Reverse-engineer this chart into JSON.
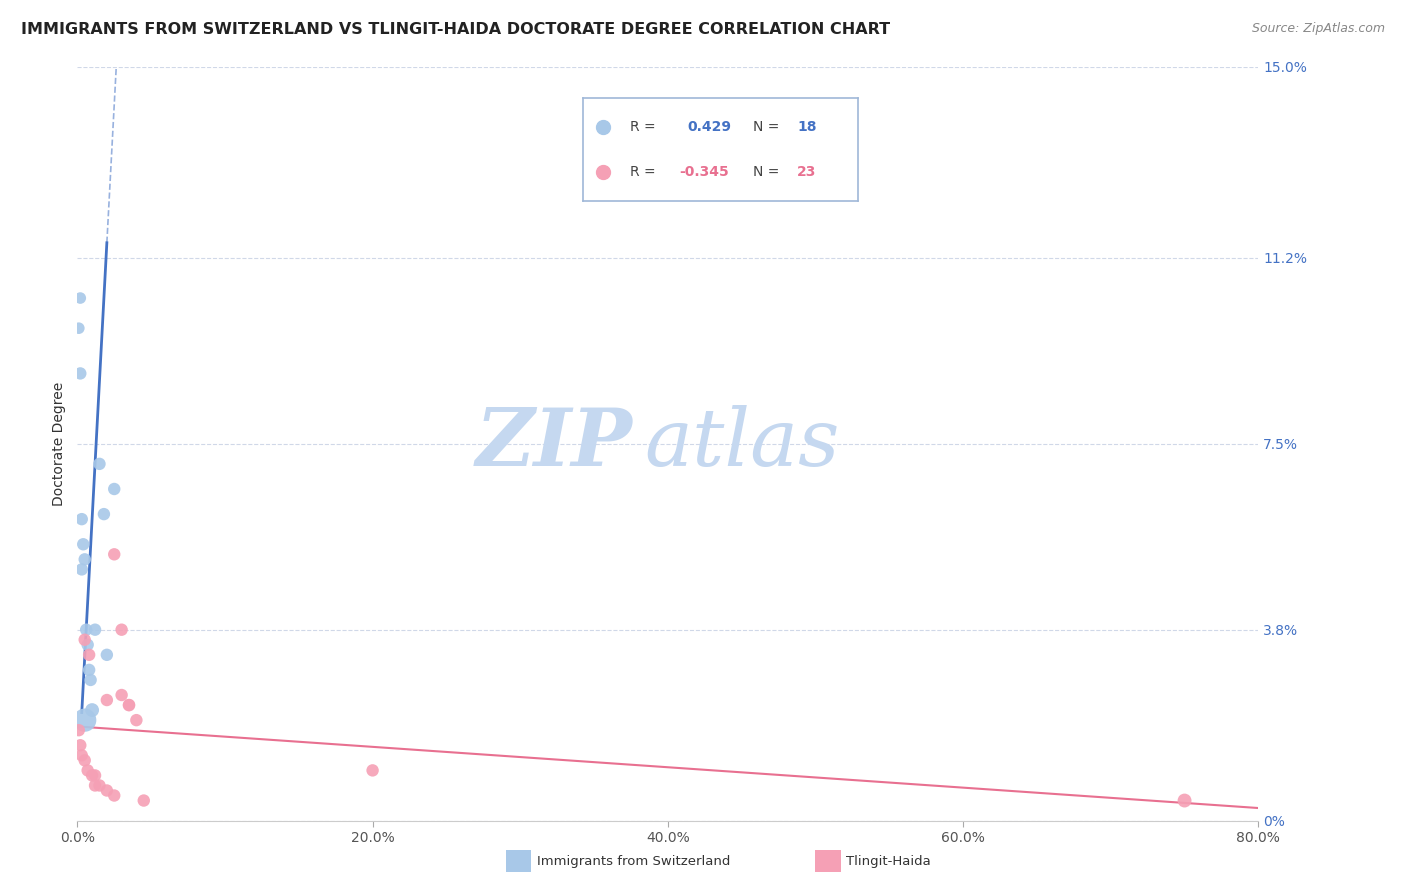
{
  "title": "IMMIGRANTS FROM SWITZERLAND VS TLINGIT-HAIDA DOCTORATE DEGREE CORRELATION CHART",
  "source": "Source: ZipAtlas.com",
  "ylabel": "Doctorate Degree",
  "xlim": [
    0.0,
    0.8
  ],
  "ylim": [
    0.0,
    0.15
  ],
  "yticks": [
    0.0,
    0.038,
    0.075,
    0.112,
    0.15
  ],
  "ytick_labels": [
    "0%",
    "3.8%",
    "7.5%",
    "11.2%",
    "15.0%"
  ],
  "xtick_labels": [
    "0.0%",
    "20.0%",
    "40.0%",
    "60.0%",
    "80.0%"
  ],
  "xticks": [
    0.0,
    0.2,
    0.4,
    0.6,
    0.8
  ],
  "blue_label": "Immigrants from Switzerland",
  "pink_label": "Tlingit-Haida",
  "blue_R": 0.429,
  "blue_N": 18,
  "pink_R": -0.345,
  "pink_N": 23,
  "blue_color": "#a8c8e8",
  "blue_line_color": "#4472c4",
  "pink_color": "#f5a0b5",
  "pink_line_color": "#e87090",
  "watermark_zip": "ZIP",
  "watermark_atlas": "atlas",
  "watermark_color_zip": "#c5d8f0",
  "watermark_color_atlas": "#c5d8f0",
  "grid_color": "#d0d8e8",
  "background_color": "#ffffff",
  "title_fontsize": 11.5,
  "source_fontsize": 9,
  "axis_label_fontsize": 10,
  "tick_fontsize": 10,
  "blue_x": [
    0.001,
    0.002,
    0.003,
    0.004,
    0.005,
    0.006,
    0.007,
    0.008,
    0.009,
    0.01,
    0.012,
    0.015,
    0.018,
    0.025,
    0.002,
    0.003,
    0.005,
    0.02
  ],
  "blue_y": [
    0.098,
    0.104,
    0.05,
    0.055,
    0.052,
    0.038,
    0.035,
    0.03,
    0.028,
    0.022,
    0.038,
    0.071,
    0.061,
    0.066,
    0.089,
    0.06,
    0.02,
    0.033
  ],
  "blue_size": [
    70,
    70,
    80,
    80,
    80,
    80,
    80,
    80,
    80,
    100,
    80,
    80,
    80,
    80,
    80,
    80,
    280,
    80
  ],
  "pink_x": [
    0.001,
    0.002,
    0.003,
    0.005,
    0.007,
    0.01,
    0.012,
    0.015,
    0.02,
    0.025,
    0.03,
    0.035,
    0.04,
    0.75,
    0.005,
    0.008,
    0.012,
    0.02,
    0.025,
    0.03,
    0.035,
    0.045,
    0.2
  ],
  "pink_y": [
    0.018,
    0.015,
    0.013,
    0.012,
    0.01,
    0.009,
    0.009,
    0.007,
    0.006,
    0.005,
    0.038,
    0.023,
    0.02,
    0.004,
    0.036,
    0.033,
    0.007,
    0.024,
    0.053,
    0.025,
    0.023,
    0.004,
    0.01
  ],
  "pink_size": [
    80,
    80,
    80,
    80,
    80,
    80,
    80,
    80,
    80,
    80,
    80,
    80,
    80,
    100,
    80,
    80,
    80,
    80,
    80,
    80,
    80,
    80,
    80
  ]
}
